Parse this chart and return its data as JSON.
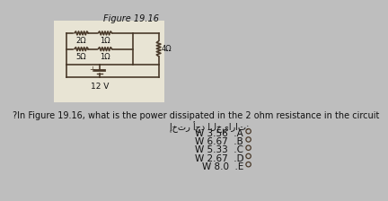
{
  "title": "Figure 19.16",
  "question": "?In Figure 19.16, what is the power dissipated in the 2 ohm resistance in the circuit",
  "choose_label": "إختر أحد الخيارات:",
  "options": [
    {
      "label": "A",
      "text": "W 3.56"
    },
    {
      "label": "B",
      "text": "W 6.67"
    },
    {
      "label": "C",
      "text": "W 5.33"
    },
    {
      "label": "D",
      "text": "W 2.67"
    },
    {
      "label": "E",
      "text": "W 8.0"
    }
  ],
  "circuit": {
    "resistors_top": [
      "2Ω",
      "1Ω"
    ],
    "resistors_bottom": [
      "5Ω",
      "1Ω"
    ],
    "resistor_right": "4Ω",
    "battery": "12 V"
  },
  "bg_color": "#bebebe",
  "circuit_bg": "#e8e4d4",
  "text_color": "#111111",
  "wire_color": "#4a3a2a",
  "font_size_title": 7,
  "font_size_question": 7,
  "font_size_options": 7.5,
  "font_size_circuit": 6
}
